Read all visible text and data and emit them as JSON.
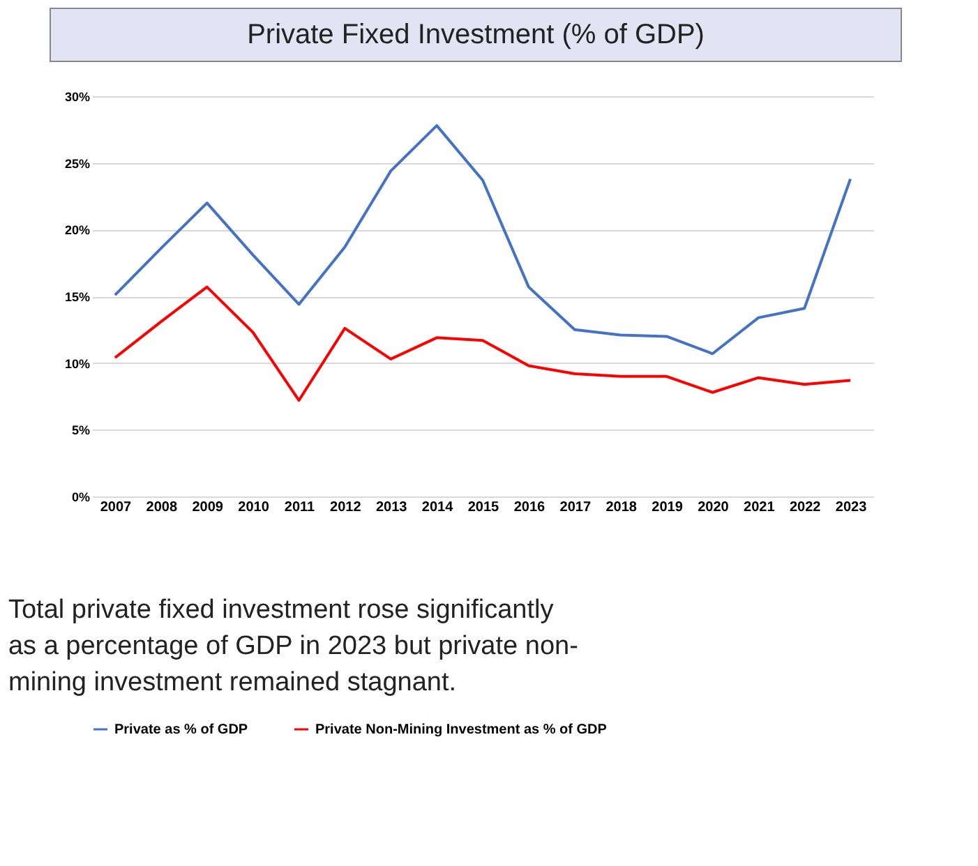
{
  "chart_data": {
    "type": "line",
    "title": "Private Fixed Investment (% of GDP)",
    "categories": [
      "2007",
      "2008",
      "2009",
      "2010",
      "2011",
      "2012",
      "2013",
      "2014",
      "2015",
      "2016",
      "2017",
      "2018",
      "2019",
      "2020",
      "2021",
      "2022",
      "2023"
    ],
    "series": [
      {
        "name": "Private as % of GDP",
        "color": "#4472c4",
        "values": [
          15.1,
          18.6,
          22.0,
          18.1,
          14.4,
          18.7,
          24.4,
          27.8,
          23.7,
          15.7,
          12.5,
          12.1,
          12.0,
          10.7,
          13.4,
          14.1,
          23.8
        ]
      },
      {
        "name": "Private Non-Mining Investment as % of GDP",
        "color": "#ff0000",
        "values": [
          10.4,
          13.1,
          15.7,
          12.3,
          7.2,
          12.6,
          10.3,
          11.9,
          11.7,
          9.8,
          9.2,
          9.0,
          9.0,
          7.8,
          8.9,
          8.4,
          8.7
        ]
      }
    ],
    "ylim": [
      0,
      30
    ],
    "yticks": [
      {
        "value": 0,
        "label": "0%"
      },
      {
        "value": 5,
        "label": "5%"
      },
      {
        "value": 10,
        "label": "10%"
      },
      {
        "value": 15,
        "label": "15%"
      },
      {
        "value": 20,
        "label": "20%"
      },
      {
        "value": 25,
        "label": "25%"
      },
      {
        "value": 30,
        "label": "30%"
      }
    ],
    "grid": "y",
    "legend": "bottom",
    "marker": "none",
    "line_style": "solid",
    "annotations": [
      "Total private fixed investment rose significantly as a percentage of GDP in 2023 but private non-mining investment remained stagnant."
    ]
  }
}
